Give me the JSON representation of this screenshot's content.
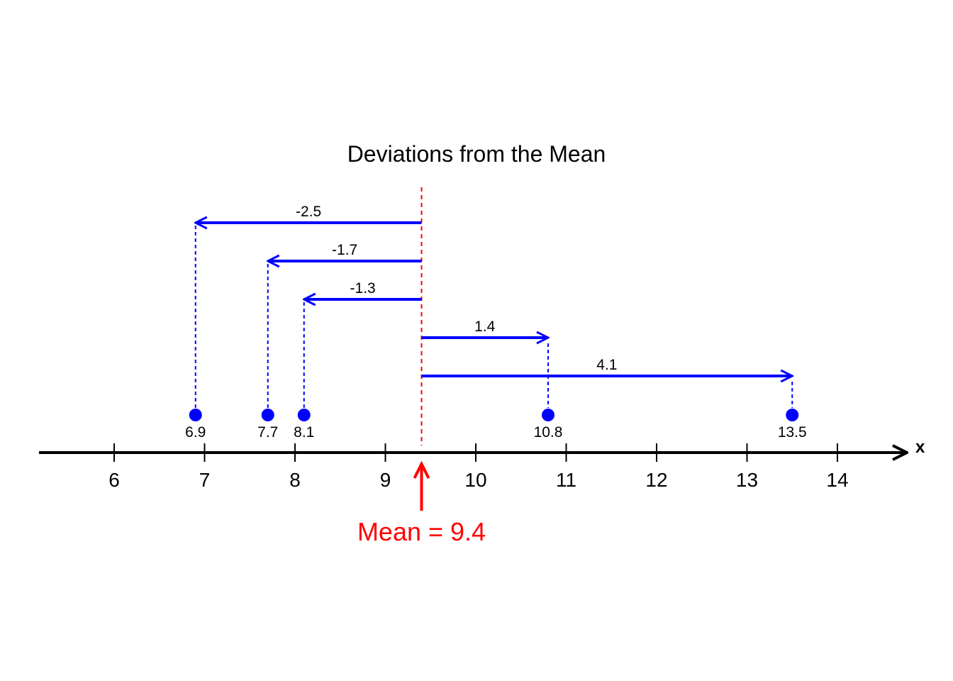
{
  "chart_data": {
    "type": "scatter",
    "title": "Deviations from the Mean",
    "xlabel": "x",
    "xlim": [
      5.2,
      14.8
    ],
    "ticks": [
      6,
      7,
      8,
      9,
      10,
      11,
      12,
      13,
      14
    ],
    "tick_labels": [
      "6",
      "7",
      "8",
      "9",
      "10",
      "11",
      "12",
      "13",
      "14"
    ],
    "mean": 9.4,
    "mean_label": "Mean = 9.4",
    "points": [
      {
        "x": 6.9,
        "label": "6.9",
        "deviation": -2.5,
        "deviation_label": "-2.5"
      },
      {
        "x": 7.7,
        "label": "7.7",
        "deviation": -1.7,
        "deviation_label": "-1.7"
      },
      {
        "x": 8.1,
        "label": "8.1",
        "deviation": -1.3,
        "deviation_label": "-1.3"
      },
      {
        "x": 10.8,
        "label": "10.8",
        "deviation": 1.4,
        "deviation_label": "1.4"
      },
      {
        "x": 13.5,
        "label": "13.5",
        "deviation": 4.1,
        "deviation_label": "4.1"
      }
    ],
    "grid": false,
    "colors": {
      "points": "#0000ff",
      "mean": "#ff0000",
      "axis": "#000000"
    }
  }
}
